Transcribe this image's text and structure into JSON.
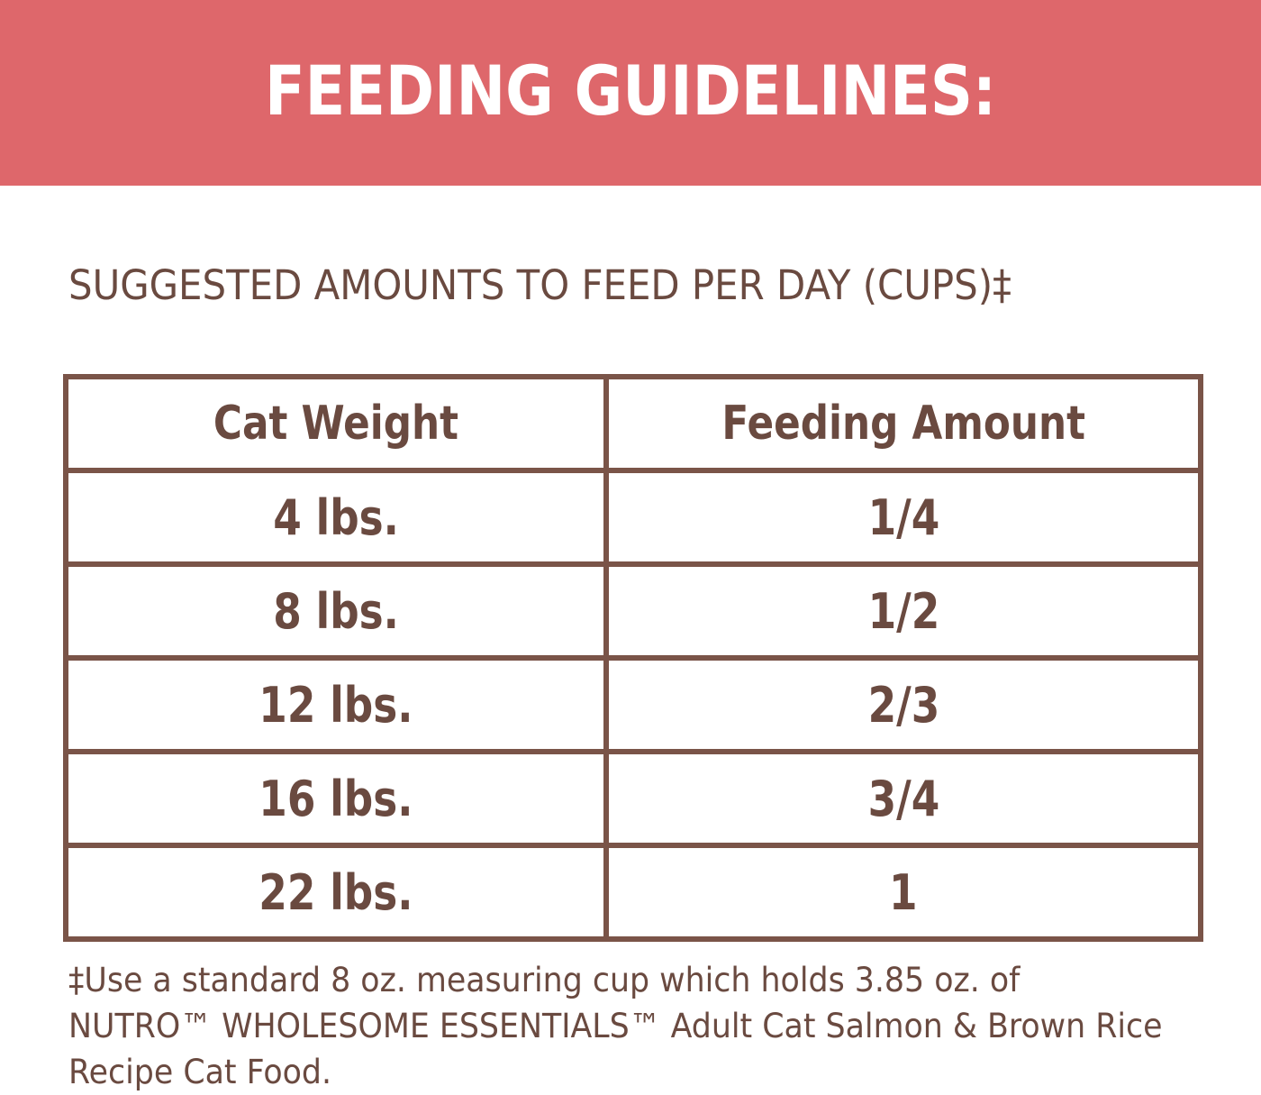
{
  "banner": {
    "title": "FEEDING GUIDELINES:",
    "background_color": "#de676b",
    "text_color": "#ffffff"
  },
  "subtitle": "SUGGESTED AMOUNTS TO FEED PER DAY (CUPS)‡",
  "table": {
    "headers": [
      "Cat Weight",
      "Feeding Amount"
    ],
    "rows": [
      [
        "4 lbs.",
        "1/4"
      ],
      [
        "8 lbs.",
        "1/2"
      ],
      [
        "12 lbs.",
        "2/3"
      ],
      [
        "16 lbs.",
        "3/4"
      ],
      [
        "22 lbs.",
        "1"
      ]
    ],
    "border_color": "#7a5448",
    "text_color": "#6a4a40"
  },
  "footnote": {
    "lines": [
      "‡Use a standard 8 oz. measuring cup which holds 3.85 oz. of",
      "NUTRO™ WHOLESOME ESSENTIALS™  Adult Cat Salmon & Brown Rice",
      "Recipe Cat Food."
    ]
  }
}
